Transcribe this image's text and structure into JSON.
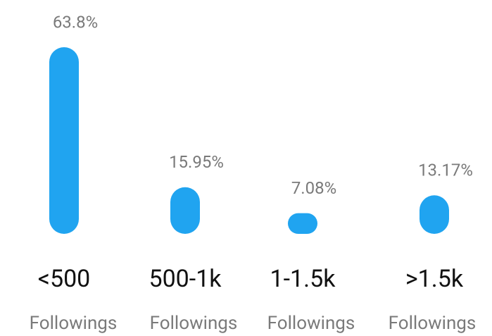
{
  "chart_data": {
    "type": "bar",
    "categories": [
      "<500",
      "500-1k",
      "1-1.5k",
      ">1.5k"
    ],
    "category_sublabels": [
      "Followings",
      "Followings",
      "Followings",
      "Followings"
    ],
    "values": [
      63.8,
      15.95,
      7.08,
      13.17
    ],
    "value_labels": [
      "63.8%",
      "15.95%",
      "7.08%",
      "13.17%"
    ],
    "color": "#20a4f0"
  }
}
